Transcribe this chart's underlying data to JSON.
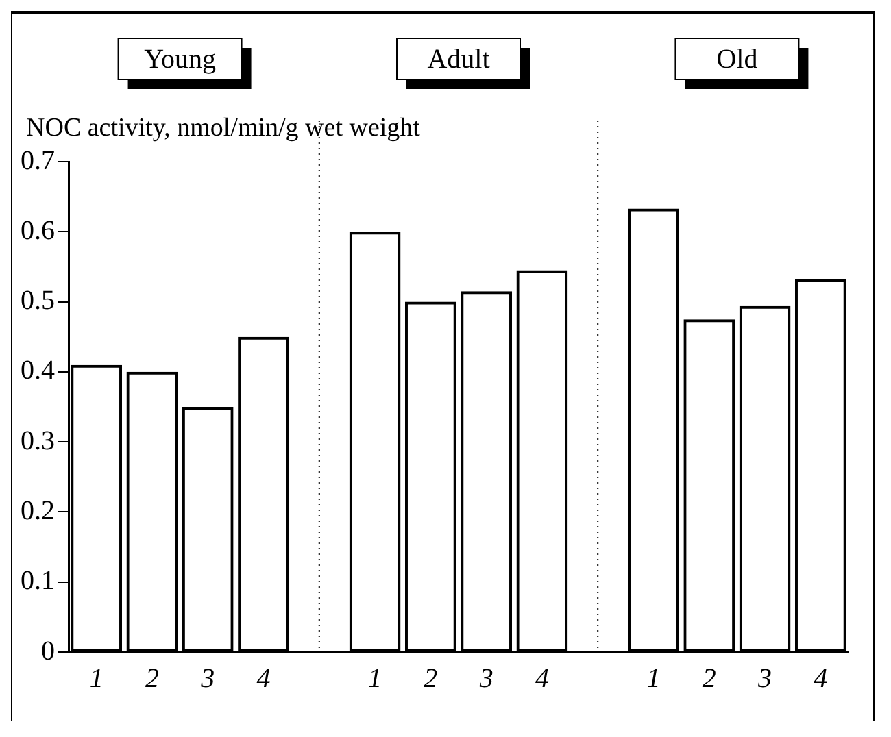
{
  "chart_data": {
    "type": "bar",
    "ylabel": "NOC activity, nmol/min/g wet weight",
    "annotations": [
      "Young",
      "Adult",
      "Old"
    ],
    "categories": [
      "1",
      "2",
      "3",
      "4",
      null,
      "1",
      "2",
      "3",
      "4",
      null,
      "1",
      "2",
      "3",
      "4"
    ],
    "values": [
      0.41,
      0.4,
      0.35,
      0.45,
      null,
      0.6,
      0.5,
      0.515,
      0.545,
      null,
      0.633,
      0.475,
      0.494,
      0.532
    ],
    "color": "#000000",
    "ylim": [
      0,
      0.7
    ],
    "yticks": [
      0,
      0.1,
      0.2,
      0.3,
      0.4,
      0.5,
      0.6,
      0.7
    ]
  }
}
